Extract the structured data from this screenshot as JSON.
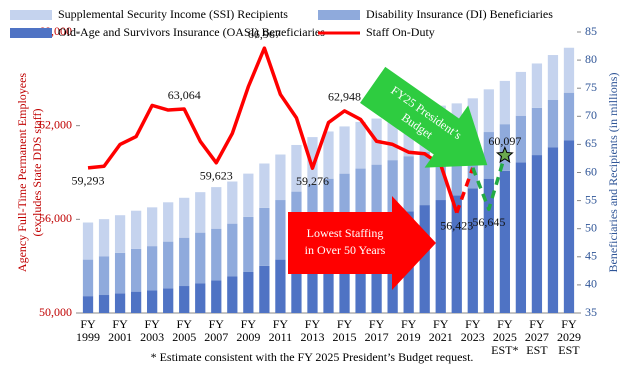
{
  "chart_data": {
    "type": "bar-line",
    "categories": [
      [
        "FY",
        "1999"
      ],
      null,
      [
        "FY",
        "2001"
      ],
      null,
      [
        "FY",
        "2003"
      ],
      null,
      [
        "FY",
        "2005"
      ],
      null,
      [
        "FY",
        "2007"
      ],
      null,
      [
        "FY",
        "2009"
      ],
      null,
      [
        "FY",
        "2011"
      ],
      null,
      [
        "FY",
        "2013"
      ],
      null,
      [
        "FY",
        "2015"
      ],
      null,
      [
        "FY",
        "2017"
      ],
      null,
      [
        "FY",
        "2019"
      ],
      null,
      [
        "FY",
        "2021"
      ],
      null,
      [
        "FY",
        "2023"
      ],
      null,
      [
        "FY",
        "2025",
        "EST*"
      ],
      null,
      [
        "FY",
        "2027",
        "EST"
      ],
      null,
      [
        "FY",
        "2029",
        "EST"
      ]
    ],
    "series": [
      {
        "name": "Old-Age and Survivors Insurance (OASI) Beneficiaries",
        "color": "#4f73c4",
        "axis": "y2",
        "values": [
          38.0,
          38.2,
          38.5,
          38.8,
          39.0,
          39.4,
          39.8,
          40.3,
          40.8,
          41.5,
          42.3,
          43.4,
          44.5,
          45.7,
          46.9,
          47.9,
          48.9,
          49.9,
          50.9,
          52.0,
          53.1,
          54.2,
          55.1,
          55.9,
          57.2,
          58.9,
          60.3,
          61.8,
          63.1,
          64.5,
          65.7
        ]
      },
      {
        "name": "Disability Insurance (DI) Beneficiaries",
        "color": "#8faadc",
        "axis": "y2",
        "values": [
          6.5,
          6.9,
          7.2,
          7.6,
          7.9,
          8.3,
          8.6,
          9.0,
          9.2,
          9.4,
          9.8,
          10.3,
          10.6,
          10.9,
          11.0,
          11.0,
          10.9,
          10.8,
          10.5,
          10.2,
          9.8,
          9.5,
          9.2,
          8.9,
          8.5,
          8.3,
          8.3,
          8.3,
          8.4,
          8.4,
          8.5
        ]
      },
      {
        "name": "Supplemental Security Income (SSI) Recipients",
        "color": "#c5d3ee",
        "axis": "y2",
        "values": [
          6.6,
          6.6,
          6.7,
          6.8,
          6.9,
          7.0,
          7.1,
          7.2,
          7.4,
          7.5,
          7.7,
          7.9,
          8.1,
          8.3,
          8.4,
          8.4,
          8.4,
          8.3,
          8.2,
          8.1,
          8.0,
          7.8,
          7.6,
          7.5,
          7.5,
          7.6,
          7.7,
          7.8,
          7.9,
          8.0,
          8.0
        ]
      },
      {
        "name": "Staff On-Duty",
        "color": "#ff0000",
        "type": "line",
        "estimate_color": "#22aa44",
        "dashed_from_index": 24,
        "values": [
          59293,
          59400,
          60800,
          61300,
          63300,
          63000,
          63064,
          61000,
          59623,
          61500,
          64500,
          66967,
          64000,
          62500,
          59276,
          62200,
          62948,
          62400,
          61000,
          60800,
          60300,
          60200,
          59500,
          56423,
          59300,
          56645,
          60097,
          null,
          null,
          null,
          null
        ],
        "value_labels": [
          "59,293",
          null,
          null,
          null,
          null,
          null,
          "63,064",
          null,
          "59,623",
          null,
          null,
          "66,967",
          null,
          null,
          "59,276",
          null,
          "62,948",
          null,
          null,
          null,
          null,
          null,
          null,
          "56,423",
          null,
          "56,645",
          "60,097",
          null,
          null,
          null,
          null
        ]
      }
    ],
    "ylim": [
      50000,
      68000
    ],
    "yticks": [
      {
        "value": 50000,
        "label": "50,000"
      },
      {
        "value": 56000,
        "label": "56,000"
      },
      {
        "value": 62000,
        "label": "62,000"
      },
      {
        "value": 68000,
        "label": "68,000"
      }
    ],
    "y2lim": [
      35,
      85
    ],
    "y2ticks": [
      35,
      40,
      45,
      50,
      55,
      60,
      65,
      70,
      75,
      80,
      85
    ],
    "ylabel": [
      "Agency Full-Time Permanent Employees",
      "(excludes State DDS staff)"
    ],
    "y2label": "Beneficiaries and Recipients  (in millions)",
    "annotations": [
      [
        "Lowest Staffing",
        "in Over 50 Years"
      ],
      [
        "FY25 President’s",
        "Budget"
      ]
    ],
    "footnote": "* Estimate consistent with the FY 2025 President’s Budget request."
  }
}
